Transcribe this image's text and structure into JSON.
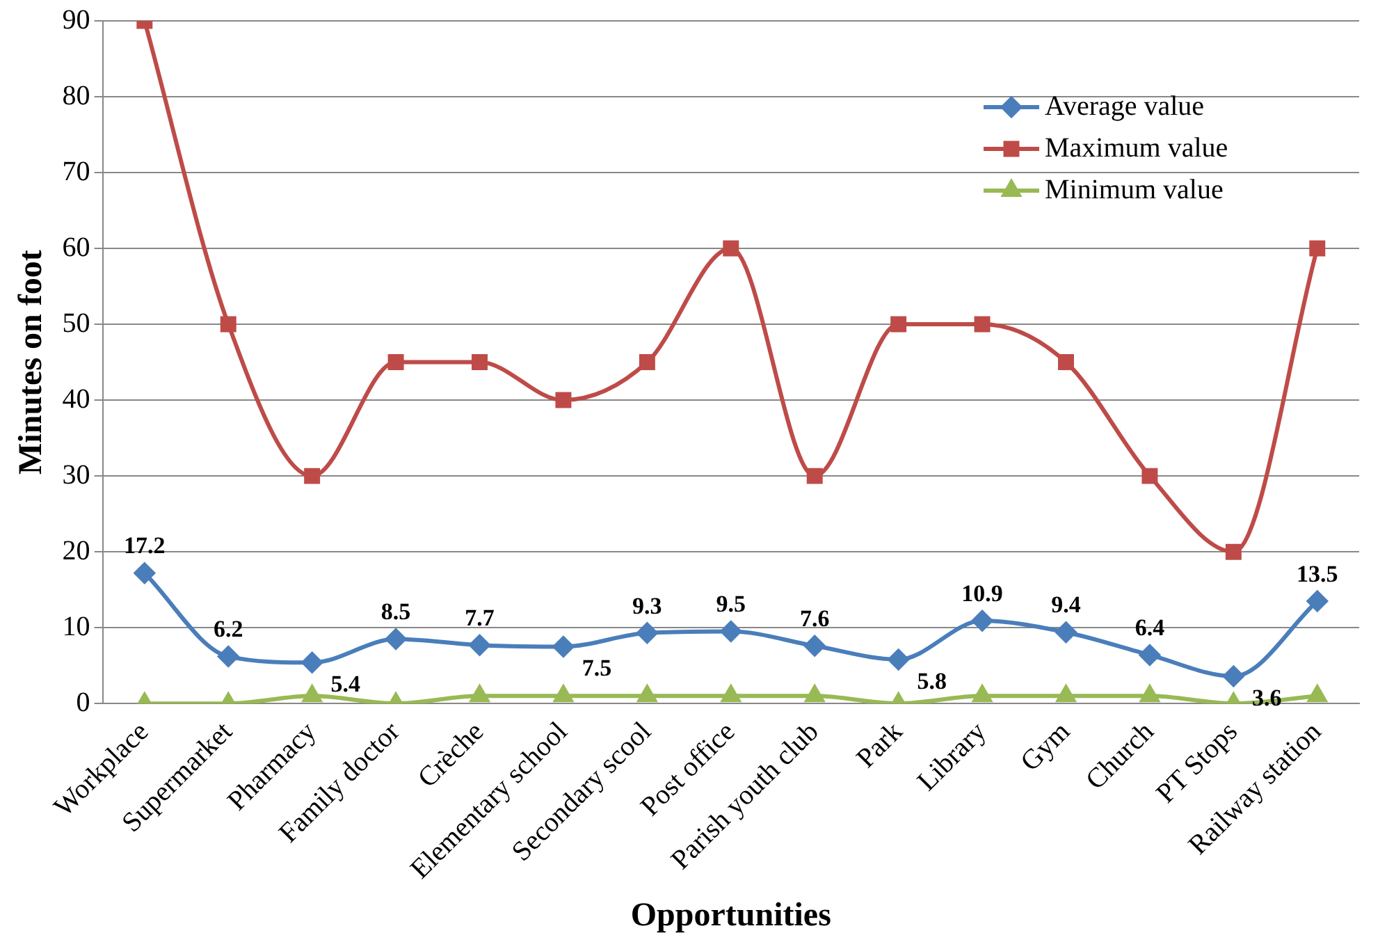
{
  "chart_data": {
    "type": "line",
    "xlabel": "Opportunities",
    "ylabel": "Minutes on foot",
    "categories": [
      "Workplace",
      "Supermarket",
      "Pharmacy",
      "Family doctor",
      "Crèche",
      "Elementary school",
      "Secondary scool",
      "Post office",
      "Parish youth club",
      "Park",
      "Library",
      "Gym",
      "Church",
      "PT Stops",
      "Railway station"
    ],
    "series": [
      {
        "name": "Average value",
        "color": "#4a7ebb",
        "marker": "diamond",
        "values": [
          17.2,
          6.2,
          5.4,
          8.5,
          7.7,
          7.5,
          9.3,
          9.5,
          7.6,
          5.8,
          10.9,
          9.4,
          6.4,
          3.6,
          13.5
        ],
        "value_labels": [
          "17.2",
          "6.2",
          "5.4",
          "8.5",
          "7.7",
          "7.5",
          "9.3",
          "9.5",
          "7.6",
          "5.8",
          "10.9",
          "9.4",
          "6.4",
          "3.6",
          "13.5"
        ]
      },
      {
        "name": "Maximum value",
        "color": "#be4b48",
        "marker": "square",
        "values": [
          90,
          50,
          30,
          45,
          45,
          40,
          45,
          60,
          30,
          50,
          50,
          45,
          30,
          20,
          60
        ]
      },
      {
        "name": "Minimum value",
        "color": "#98b954",
        "marker": "triangle",
        "values": [
          0,
          0,
          1,
          0,
          1,
          1,
          1,
          1,
          1,
          0,
          1,
          1,
          1,
          0,
          1
        ]
      }
    ],
    "ylim": [
      0,
      90
    ],
    "yticks": [
      0,
      10,
      20,
      30,
      40,
      50,
      60,
      70,
      80,
      90
    ],
    "grid": "y",
    "legend": "top right"
  }
}
